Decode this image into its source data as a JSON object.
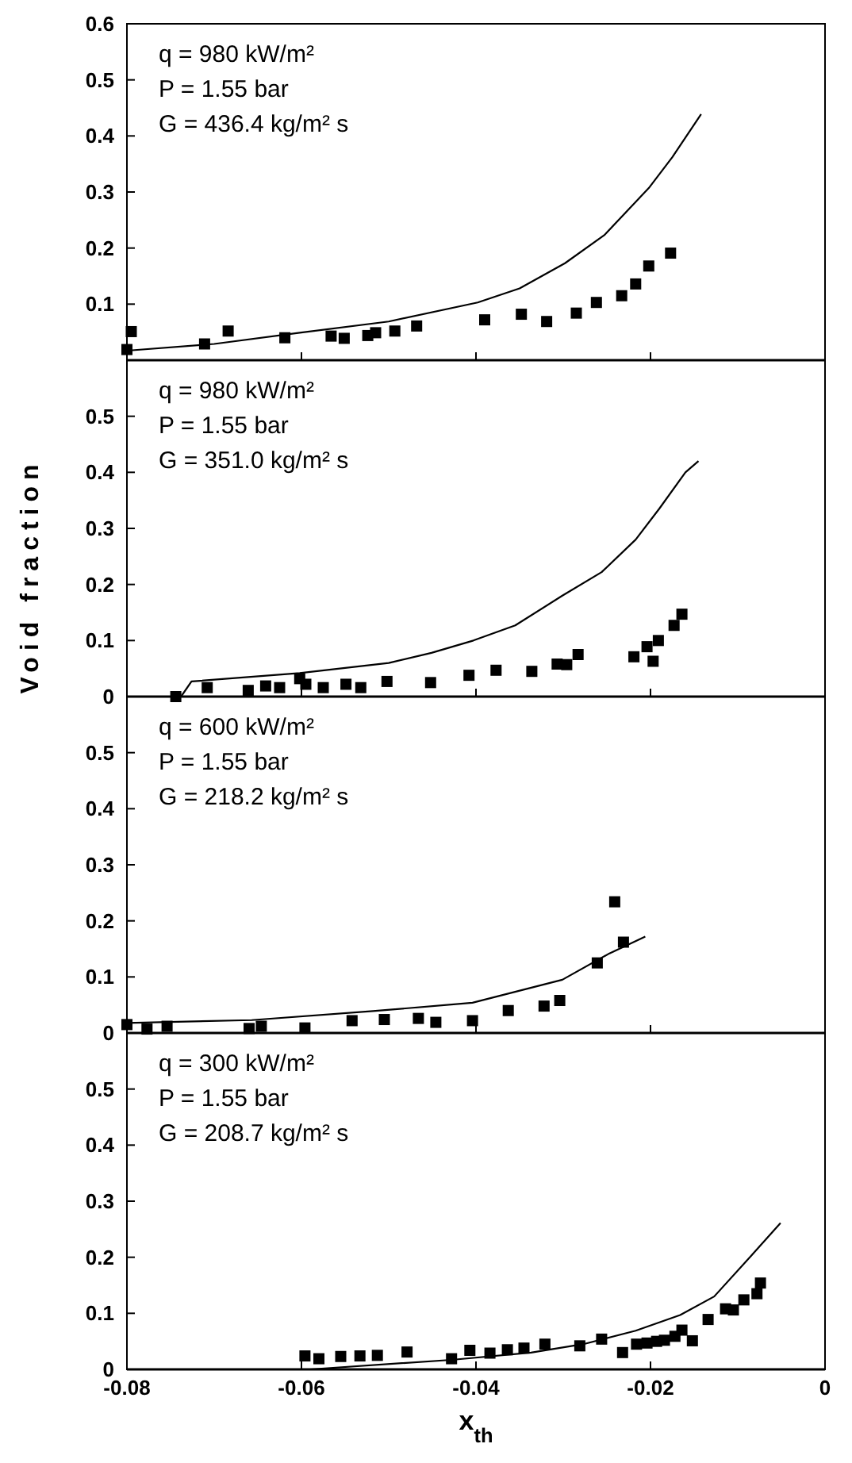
{
  "chart_data": [
    {
      "type": "scatter",
      "annotations": [
        "q = 980 kW/m²",
        "P = 1.55 bar",
        "G = 436.4 kg/m² s"
      ],
      "xlim": [
        -0.08,
        0
      ],
      "xticks": [
        -0.08,
        -0.06,
        -0.04,
        -0.02,
        0
      ],
      "ylim": [
        0,
        0.6
      ],
      "yticks": [
        0.1,
        0.2,
        0.3,
        0.4,
        0.5,
        0.6
      ],
      "tick_labels": "y",
      "grid": false,
      "series": [
        {
          "color": "#000000",
          "marker": "square",
          "x": [
            -0.08,
            -0.0795,
            -0.0711,
            -0.0684,
            -0.0619,
            -0.0566,
            -0.0551,
            -0.0524,
            -0.0515,
            -0.0493,
            -0.0468,
            -0.039,
            -0.0348,
            -0.0319,
            -0.0285,
            -0.0262,
            -0.0233,
            -0.0217,
            -0.0202,
            -0.0177
          ],
          "values": [
            0.019,
            0.051,
            0.029,
            0.052,
            0.04,
            0.043,
            0.039,
            0.044,
            0.049,
            0.052,
            0.061,
            0.072,
            0.082,
            0.069,
            0.084,
            0.103,
            0.115,
            0.136,
            0.168,
            0.191
          ]
        },
        {
          "type": "line",
          "color": "#000000",
          "line_style": "solid",
          "x": [
            -0.08,
            -0.07,
            -0.0602,
            -0.05,
            -0.0398,
            -0.035,
            -0.0298,
            -0.0253,
            -0.0202,
            -0.0175,
            -0.0142
          ],
          "values": [
            0.017,
            0.029,
            0.049,
            0.069,
            0.103,
            0.128,
            0.173,
            0.223,
            0.307,
            0.362,
            0.439
          ]
        }
      ]
    },
    {
      "type": "scatter",
      "ylabel": "Void fraction",
      "annotations": [
        "q = 980 kW/m²",
        "P = 1.55 bar",
        "G = 351.0 kg/m² s"
      ],
      "xlim": [
        -0.08,
        0
      ],
      "xticks": [
        -0.08,
        -0.06,
        -0.04,
        -0.02,
        0
      ],
      "ylim": [
        0,
        0.6
      ],
      "yticks": [
        0,
        0.1,
        0.2,
        0.3,
        0.4,
        0.5
      ],
      "tick_labels": "y",
      "grid": false,
      "series": [
        {
          "color": "#000000",
          "marker": "square",
          "x": [
            -0.0744,
            -0.0708,
            -0.0661,
            -0.0641,
            -0.0625,
            -0.0602,
            -0.0595,
            -0.0575,
            -0.0549,
            -0.0532,
            -0.0502,
            -0.0452,
            -0.0408,
            -0.0377,
            -0.0336,
            -0.0307,
            -0.0296,
            -0.0283,
            -0.0219,
            -0.0204,
            -0.0197,
            -0.0191,
            -0.0173,
            -0.0164
          ],
          "values": [
            0.0,
            0.016,
            0.011,
            0.019,
            0.016,
            0.032,
            0.022,
            0.016,
            0.022,
            0.016,
            0.027,
            0.025,
            0.038,
            0.047,
            0.045,
            0.058,
            0.057,
            0.075,
            0.071,
            0.089,
            0.063,
            0.1,
            0.127,
            0.147
          ]
        },
        {
          "type": "line",
          "color": "#000000",
          "line_style": "solid",
          "x": [
            -0.0738,
            -0.0726,
            -0.0602,
            -0.05,
            -0.0451,
            -0.0403,
            -0.0355,
            -0.0301,
            -0.0256,
            -0.0217,
            -0.019,
            -0.016,
            -0.0145
          ],
          "values": [
            0,
            0.027,
            0.042,
            0.06,
            0.078,
            0.1,
            0.127,
            0.18,
            0.222,
            0.28,
            0.335,
            0.4,
            0.42
          ]
        }
      ]
    },
    {
      "type": "scatter",
      "annotations": [
        "q = 600 kW/m²",
        "P = 1.55 bar",
        "G = 218.2 kg/m² s"
      ],
      "xlim": [
        -0.08,
        0
      ],
      "xticks": [
        -0.08,
        -0.06,
        -0.04,
        -0.02,
        0
      ],
      "ylim": [
        0,
        0.6
      ],
      "yticks": [
        0,
        0.1,
        0.2,
        0.3,
        0.4,
        0.5
      ],
      "tick_labels": "y",
      "grid": false,
      "series": [
        {
          "color": "#000000",
          "marker": "square",
          "x": [
            -0.08,
            -0.0777,
            -0.0754,
            -0.066,
            -0.0646,
            -0.0596,
            -0.0542,
            -0.0505,
            -0.0466,
            -0.0446,
            -0.0404,
            -0.0363,
            -0.0322,
            -0.0304,
            -0.0261,
            -0.0241,
            -0.0231
          ],
          "values": [
            0.015,
            0.007,
            0.012,
            0.008,
            0.012,
            0.009,
            0.022,
            0.024,
            0.026,
            0.019,
            0.022,
            0.04,
            0.048,
            0.058,
            0.125,
            0.234,
            0.162
          ]
        },
        {
          "type": "line",
          "color": "#000000",
          "line_style": "solid",
          "x": [
            -0.08,
            -0.0657,
            -0.0518,
            -0.0404,
            -0.0301,
            -0.0247,
            -0.0206
          ],
          "values": [
            0.018,
            0.023,
            0.039,
            0.054,
            0.095,
            0.142,
            0.172
          ]
        }
      ]
    },
    {
      "type": "scatter",
      "xlabel": "x$_{th}$",
      "annotations": [
        "q = 300 kW/m²",
        "P = 1.55 bar",
        "G = 208.7 kg/m² s"
      ],
      "xlim": [
        -0.08,
        0
      ],
      "xticks": [
        -0.08,
        -0.06,
        -0.04,
        -0.02,
        0
      ],
      "ylim": [
        0,
        0.6
      ],
      "yticks": [
        0,
        0.1,
        0.2,
        0.3,
        0.4,
        0.5
      ],
      "grid": false,
      "series": [
        {
          "color": "#000000",
          "marker": "square",
          "x": [
            -0.0596,
            -0.058,
            -0.0555,
            -0.0533,
            -0.0513,
            -0.0479,
            -0.0428,
            -0.0407,
            -0.0384,
            -0.0364,
            -0.0345,
            -0.0321,
            -0.0281,
            -0.0256,
            -0.0232,
            -0.0216,
            -0.0204,
            -0.0193,
            -0.0184,
            -0.0172,
            -0.0164,
            -0.0152,
            -0.0134,
            -0.0114,
            -0.0105,
            -0.0093,
            -0.0078,
            -0.0074
          ],
          "values": [
            0.024,
            0.019,
            0.023,
            0.024,
            0.025,
            0.031,
            0.019,
            0.034,
            0.029,
            0.035,
            0.038,
            0.045,
            0.042,
            0.054,
            0.03,
            0.045,
            0.047,
            0.05,
            0.052,
            0.059,
            0.07,
            0.051,
            0.089,
            0.108,
            0.106,
            0.124,
            0.135,
            0.154
          ]
        },
        {
          "type": "line",
          "color": "#000000",
          "line_style": "solid",
          "x": [
            -0.059,
            -0.0428,
            -0.0337,
            -0.0277,
            -0.0217,
            -0.0166,
            -0.0127,
            -0.0085,
            -0.0051
          ],
          "values": [
            0,
            0.017,
            0.03,
            0.045,
            0.069,
            0.097,
            0.13,
            0.202,
            0.261
          ]
        }
      ]
    }
  ]
}
